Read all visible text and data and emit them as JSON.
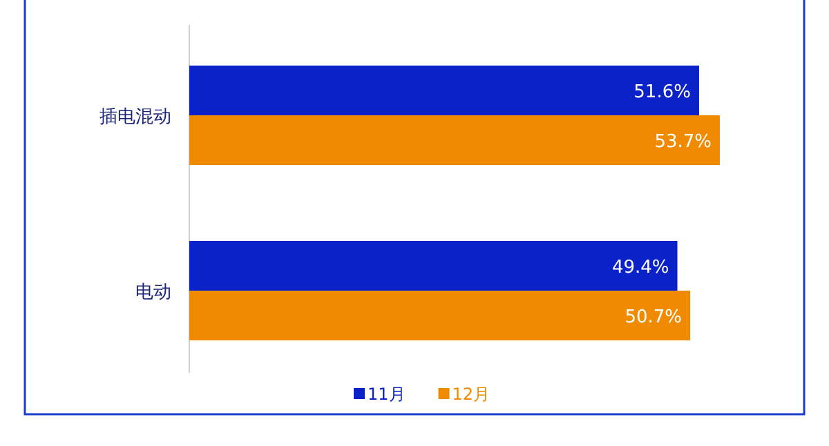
{
  "chart_data": {
    "type": "bar",
    "orientation": "horizontal",
    "categories": [
      "插电混动",
      "电动"
    ],
    "series": [
      {
        "name": "11月",
        "color": "#0a22c8",
        "values": [
          51.6,
          49.4
        ],
        "value_labels": [
          "51.6%",
          "49.4%"
        ]
      },
      {
        "name": "12月",
        "color": "#f08a00",
        "values": [
          53.7,
          50.7
        ],
        "value_labels": [
          "53.7%",
          "50.7%"
        ]
      }
    ],
    "legend": "bottom"
  }
}
